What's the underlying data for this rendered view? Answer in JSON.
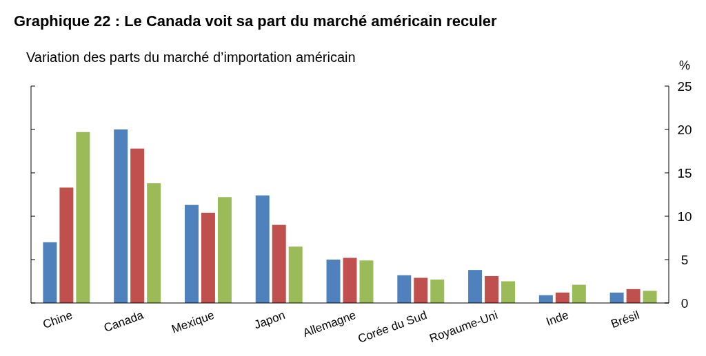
{
  "chart_data": {
    "type": "bar",
    "title": "Graphique 22 : Le Canada voit sa part du marché américain reculer",
    "subtitle": "Variation des parts du marché d’importation américain",
    "ylabel": "%",
    "categories": [
      "Chine",
      "Canada",
      "Mexique",
      "Japon",
      "Allemagne",
      "Corée du Sud",
      "Royaume-Uni",
      "Inde",
      "Brésil"
    ],
    "series": [
      {
        "color": "#4f81bd",
        "values": [
          7.0,
          20.0,
          11.3,
          12.4,
          5.0,
          3.2,
          3.8,
          0.9,
          1.2
        ]
      },
      {
        "color": "#c0504d",
        "values": [
          13.3,
          17.8,
          10.4,
          9.0,
          5.2,
          2.9,
          3.1,
          1.2,
          1.6
        ]
      },
      {
        "color": "#9bbb59",
        "values": [
          19.7,
          13.8,
          12.2,
          6.5,
          4.9,
          2.7,
          2.5,
          2.1,
          1.4
        ]
      }
    ],
    "ylim": [
      0,
      25
    ],
    "yticks": [
      0,
      5,
      10,
      15,
      20,
      25
    ]
  }
}
